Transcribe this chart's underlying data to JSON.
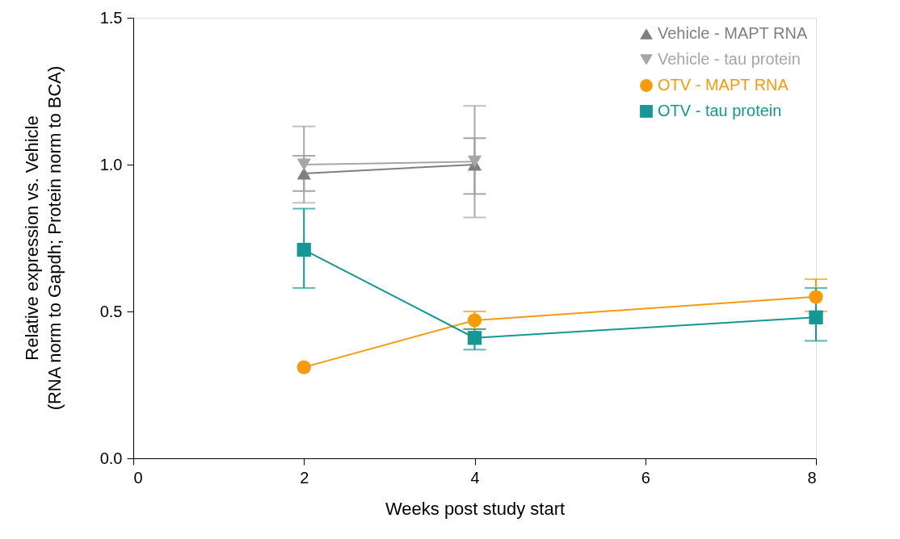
{
  "chart_data": {
    "type": "line",
    "xlabel": "Weeks post study start",
    "ylabel": "Relative expression vs. Vehicle\n(RNA norm to Gapdh; Protein norm to BCA)",
    "xlim": [
      0,
      8
    ],
    "xticks": [
      0,
      2,
      4,
      6,
      8
    ],
    "ylim": [
      0,
      1.5
    ],
    "yticks": [
      {
        "value": 0,
        "label": "0.0"
      },
      0.5,
      {
        "value": 1,
        "label": "1.0"
      },
      1.5
    ],
    "grid": false,
    "legend": "top right",
    "series": [
      {
        "name": "Vehicle - MAPT RNA",
        "color": "#7f7f7f",
        "marker": "triangle",
        "x": [
          2,
          4
        ],
        "values": [
          0.97,
          1.0
        ],
        "errors": [
          [
            0.91,
            1.03
          ],
          [
            0.9,
            1.09
          ]
        ]
      },
      {
        "name": "Vehicle - tau protein",
        "color": "#a6a6a6",
        "marker": "triangle-down",
        "x": [
          2,
          4
        ],
        "values": [
          1.0,
          1.01
        ],
        "errors": [
          [
            0.87,
            1.13
          ],
          [
            0.82,
            1.2
          ]
        ]
      },
      {
        "name": "OTV - MAPT RNA",
        "color": "#f79a0e",
        "marker": "circle",
        "x": [
          2,
          4,
          8
        ],
        "values": [
          0.31,
          0.47,
          0.55
        ],
        "errors": [
          null,
          [
            0.44,
            0.5
          ],
          [
            0.5,
            0.61
          ]
        ]
      },
      {
        "name": "OTV - tau protein",
        "color": "#139896",
        "marker": "square",
        "x": [
          2,
          4,
          8
        ],
        "values": [
          0.71,
          0.41,
          0.48
        ],
        "errors": [
          [
            0.58,
            0.85
          ],
          [
            0.37,
            0.44
          ],
          [
            0.4,
            0.58
          ]
        ]
      }
    ]
  }
}
